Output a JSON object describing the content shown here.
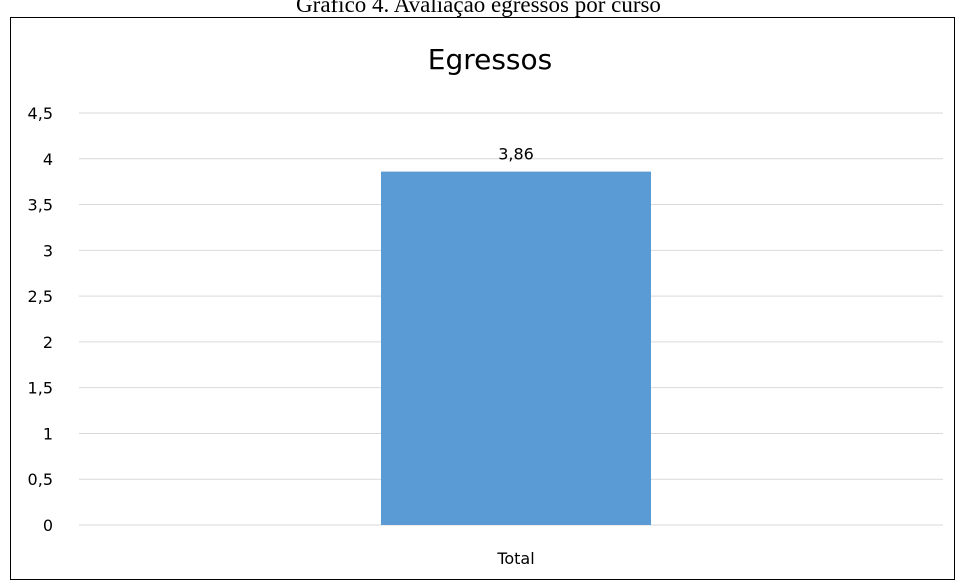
{
  "figure_caption": "Gráfico 4. Avaliação egressos por curso",
  "chart_data": {
    "type": "bar",
    "title": "Egressos",
    "categories": [
      "Total"
    ],
    "values": [
      3.86
    ],
    "data_labels": [
      "3,86"
    ],
    "xlabel": "",
    "ylabel": "",
    "ylim": [
      0,
      4.5
    ],
    "yticks": [
      "0",
      "0,5",
      "1",
      "1,5",
      "2",
      "2,5",
      "3",
      "3,5",
      "4",
      "4,5"
    ],
    "grid": true,
    "legend": "none",
    "colors": {
      "bar": "#5b9bd5",
      "grid": "#d9d9d9",
      "text": "#000000"
    }
  }
}
